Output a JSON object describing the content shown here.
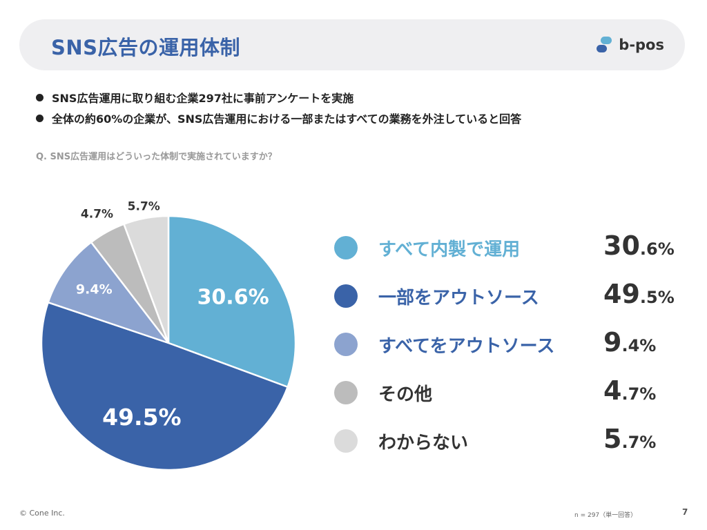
{
  "header": {
    "title": "SNS広告の運用体制",
    "logo_text": "b-pos"
  },
  "bullets": [
    "SNS広告運用に取り組む企業297社に事前アンケートを実施",
    "全体の約60%の企業が、SNS広告運用における一部またはすべての業務を外注していると回答"
  ],
  "question": "Q. SNS広告運用はどういった体制で実施されていますか？",
  "chart_data": {
    "type": "pie",
    "categories": [
      "すべて内製で運用",
      "一部をアウトソース",
      "すべてをアウトソース",
      "その他",
      "わからない"
    ],
    "values": [
      30.6,
      49.5,
      9.4,
      4.7,
      5.7
    ],
    "data_labels": [
      "30.6%",
      "49.5%",
      "9.4%",
      "4.7%",
      "5.7%"
    ],
    "value_integer": [
      "30",
      "49",
      "9",
      "4",
      "5"
    ],
    "value_decimal": [
      ".6%",
      ".5%",
      ".4%",
      ".7%",
      ".7%"
    ],
    "colors": [
      "#62b0d4",
      "#3a63a8",
      "#8ca3cf",
      "#bcbcbc",
      "#dbdbdb"
    ],
    "label_colors": [
      "#62b0d4",
      "#3a63a8",
      "#3a63a8",
      "#333333",
      "#333333"
    ],
    "start": "12 o'clock, clockwise",
    "legend_placement": "right"
  },
  "footer": {
    "copyright": "© Cone Inc.",
    "note": "n = 297（単一回答）",
    "page": "7"
  }
}
